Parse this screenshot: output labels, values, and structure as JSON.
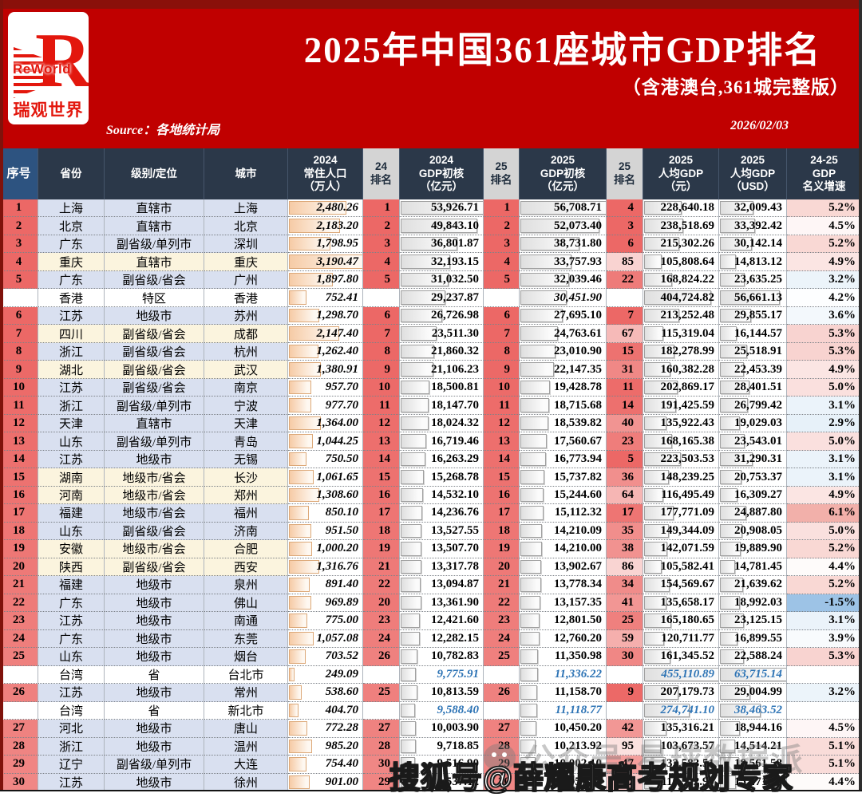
{
  "banner": {
    "logo": {
      "r": "R",
      "text_en": "ReWorld",
      "text_cn": "瑞观世界"
    },
    "source": "Source：各地统计局",
    "date": "2026/02/03"
  },
  "chart_data": {
    "type": "table",
    "title": "2025年中国361座城市GDP排名",
    "subtitle": "（含港澳台,361城完整版）",
    "columns": [
      "序号",
      "省份",
      "级别/定位",
      "城市",
      "2024\n常住人口\n（万人）",
      "24\n排名",
      "2024\nGDP初核\n（亿元）",
      "25\n排名",
      "2025\nGDP初核\n（亿元）",
      "25\n排名",
      "2025\n人均GDP\n（元）",
      "2025\n人均GDP\n（USD）",
      "24-25\nGDP\n名义增速"
    ],
    "column_order_note": "seq, province, level, city, population2024, rank24, gdp2024, rank25, gdp2025, rankPerCapita, perCapitaCNY, perCapitaUSD, growth; then row tint (b=lavender,y=cream,w=white) and special (hk/tw)",
    "bar_max": {
      "pop": 3190.47,
      "gdp24": 53926.71,
      "gdp25": 56708.71,
      "pc": 455110.89,
      "usd": 63715.14
    },
    "rows": [
      [
        "1",
        "上海",
        "直辖市",
        "上海",
        "2,480.26",
        "1",
        "53,926.71",
        "1",
        "56,708.71",
        "4",
        "228,640.18",
        "32,009.43",
        "5.2%",
        "b",
        ""
      ],
      [
        "2",
        "北京",
        "直辖市",
        "北京",
        "2,183.20",
        "2",
        "49,843.10",
        "2",
        "52,073.40",
        "3",
        "238,518.69",
        "33,392.42",
        "4.5%",
        "b",
        ""
      ],
      [
        "3",
        "广东",
        "副省级/单列市",
        "深圳",
        "1,798.95",
        "3",
        "36,801.87",
        "3",
        "38,731.80",
        "6",
        "215,302.26",
        "30,142.14",
        "5.2%",
        "b",
        ""
      ],
      [
        "4",
        "重庆",
        "直辖市",
        "重庆",
        "3,190.47",
        "4",
        "32,193.15",
        "4",
        "33,757.93",
        "85",
        "105,808.64",
        "14,813.12",
        "4.9%",
        "y",
        ""
      ],
      [
        "5",
        "广东",
        "副省级/省会",
        "广州",
        "1,897.80",
        "5",
        "31,032.50",
        "5",
        "32,039.46",
        "22",
        "168,824.22",
        "23,635.25",
        "3.2%",
        "b",
        ""
      ],
      [
        "",
        "香港",
        "特区",
        "香港",
        "752.41",
        "",
        "29,237.87",
        "",
        "30,451.90",
        "",
        "404,724.82",
        "56,661.13",
        "4.2%",
        "w",
        "hk"
      ],
      [
        "6",
        "江苏",
        "地级市",
        "苏州",
        "1,298.70",
        "6",
        "26,726.98",
        "6",
        "27,695.10",
        "7",
        "213,252.48",
        "29,855.17",
        "3.6%",
        "b",
        ""
      ],
      [
        "7",
        "四川",
        "副省级/省会",
        "成都",
        "2,147.40",
        "7",
        "23,511.30",
        "7",
        "24,763.61",
        "67",
        "115,319.04",
        "16,144.57",
        "5.3%",
        "y",
        ""
      ],
      [
        "8",
        "浙江",
        "副省级/省会",
        "杭州",
        "1,262.40",
        "8",
        "21,860.32",
        "8",
        "23,010.90",
        "15",
        "182,278.99",
        "25,518.91",
        "5.3%",
        "b",
        ""
      ],
      [
        "9",
        "湖北",
        "副省级/省会",
        "武汉",
        "1,380.91",
        "9",
        "21,106.23",
        "9",
        "22,147.35",
        "31",
        "160,382.28",
        "22,453.39",
        "4.9%",
        "y",
        ""
      ],
      [
        "10",
        "江苏",
        "副省级/省会",
        "南京",
        "957.70",
        "10",
        "18,500.81",
        "10",
        "19,428.78",
        "11",
        "202,869.17",
        "28,401.51",
        "5.0%",
        "b",
        ""
      ],
      [
        "11",
        "浙江",
        "副省级/单列市",
        "宁波",
        "977.70",
        "11",
        "18,147.70",
        "11",
        "18,715.68",
        "14",
        "191,425.59",
        "26,799.42",
        "3.1%",
        "b",
        ""
      ],
      [
        "12",
        "天津",
        "直辖市",
        "天津",
        "1,364.00",
        "12",
        "18,024.32",
        "12",
        "18,539.82",
        "40",
        "135,922.43",
        "19,029.03",
        "2.9%",
        "b",
        ""
      ],
      [
        "13",
        "山东",
        "副省级/单列市",
        "青岛",
        "1,044.25",
        "13",
        "16,719.46",
        "13",
        "17,560.67",
        "23",
        "168,165.38",
        "23,543.01",
        "5.0%",
        "b",
        ""
      ],
      [
        "14",
        "江苏",
        "地级市",
        "无锡",
        "750.50",
        "14",
        "16,263.29",
        "14",
        "16,773.94",
        "5",
        "223,503.53",
        "31,290.31",
        "3.1%",
        "b",
        ""
      ],
      [
        "15",
        "湖南",
        "地级市/省会",
        "长沙",
        "1,061.65",
        "15",
        "15,268.78",
        "15",
        "15,737.82",
        "36",
        "148,239.25",
        "20,753.37",
        "3.1%",
        "y",
        ""
      ],
      [
        "16",
        "河南",
        "地级市/省会",
        "郑州",
        "1,308.60",
        "16",
        "14,532.10",
        "16",
        "15,244.60",
        "64",
        "116,495.49",
        "16,309.27",
        "4.9%",
        "y",
        ""
      ],
      [
        "17",
        "福建",
        "地级市/省会",
        "福州",
        "850.10",
        "17",
        "14,236.76",
        "17",
        "15,112.32",
        "17",
        "177,771.09",
        "24,887.80",
        "6.1%",
        "b",
        ""
      ],
      [
        "18",
        "山东",
        "副省级/省会",
        "济南",
        "951.50",
        "18",
        "13,527.55",
        "18",
        "14,210.09",
        "35",
        "149,344.09",
        "20,908.05",
        "5.0%",
        "b",
        ""
      ],
      [
        "19",
        "安徽",
        "地级市/省会",
        "合肥",
        "1,000.20",
        "19",
        "13,507.70",
        "19",
        "14,210.00",
        "38",
        "142,071.59",
        "19,889.90",
        "5.2%",
        "y",
        ""
      ],
      [
        "20",
        "陕西",
        "副省级/省会",
        "西安",
        "1,316.76",
        "21",
        "13,317.78",
        "20",
        "13,902.67",
        "86",
        "105,582.41",
        "14,781.45",
        "4.4%",
        "y",
        ""
      ],
      [
        "21",
        "福建",
        "地级市",
        "泉州",
        "891.40",
        "22",
        "13,094.87",
        "21",
        "13,778.34",
        "34",
        "154,569.67",
        "21,639.62",
        "5.2%",
        "b",
        ""
      ],
      [
        "22",
        "广东",
        "地级市",
        "佛山",
        "969.89",
        "20",
        "13,361.90",
        "22",
        "13,157.35",
        "41",
        "135,658.17",
        "18,992.03",
        "-1.5%",
        "b",
        ""
      ],
      [
        "23",
        "江苏",
        "地级市",
        "南通",
        "775.00",
        "23",
        "12,421.60",
        "23",
        "12,801.50",
        "25",
        "165,180.65",
        "23,125.15",
        "3.1%",
        "b",
        ""
      ],
      [
        "24",
        "广东",
        "地级市",
        "东莞",
        "1,057.08",
        "24",
        "12,282.15",
        "24",
        "12,760.20",
        "59",
        "120,711.77",
        "16,899.55",
        "3.9%",
        "b",
        ""
      ],
      [
        "25",
        "山东",
        "地级市",
        "烟台",
        "703.52",
        "26",
        "10,782.83",
        "25",
        "11,350.98",
        "30",
        "161,345.52",
        "22,588.24",
        "5.3%",
        "b",
        ""
      ],
      [
        "",
        "台湾",
        "省",
        "台北市",
        "249.09",
        "",
        "9,775.91",
        "",
        "11,336.22",
        "",
        "455,110.89",
        "63,715.14",
        "",
        "w",
        "tw"
      ],
      [
        "26",
        "江苏",
        "地级市",
        "常州",
        "538.60",
        "25",
        "10,813.59",
        "26",
        "11,158.70",
        "9",
        "207,179.73",
        "29,004.99",
        "3.2%",
        "b",
        ""
      ],
      [
        "",
        "台湾",
        "省",
        "新北市",
        "404.70",
        "",
        "9,588.40",
        "",
        "11,118.77",
        "",
        "274,741.10",
        "38,463.52",
        "",
        "w",
        "tw"
      ],
      [
        "27",
        "河北",
        "地级市",
        "唐山",
        "772.28",
        "27",
        "10,003.90",
        "27",
        "10,450.20",
        "42",
        "135,316.21",
        "18,944.16",
        "4.5%",
        "b",
        ""
      ],
      [
        "28",
        "浙江",
        "地级市",
        "温州",
        "985.20",
        "28",
        "9,718.85",
        "28",
        "10,213.92",
        "95",
        "103,673.57",
        "14,514.21",
        "5.1%",
        "b",
        ""
      ],
      [
        "29",
        "辽宁",
        "副省级/单列市",
        "大连",
        "754.40",
        "30",
        "9,516.90",
        "29",
        "10,002.10",
        "47",
        "132,583.51",
        "18,561.58",
        "5.1%",
        "b",
        ""
      ],
      [
        "30",
        "江苏",
        "地级市",
        "徐州",
        "901.00",
        "29",
        "9,537.12",
        "30",
        "9,957.22",
        "77",
        "110,512.99",
        "15,471.73",
        "4.4%",
        "b",
        ""
      ]
    ]
  },
  "watermarks": {
    "sohu": "搜狐号@薛耀康高考规划专家",
    "gongzhonghao": "公众号·星球数据派"
  },
  "colors": {
    "banner_red": "#C00000",
    "banner_dark": "#8A100A",
    "header_navy": "#2B3849",
    "seq_header_blue": "#2D5380",
    "rank_header_gray": "#D4D4D4",
    "rank_salmon": "#EC6866",
    "rank_salmon_light": "#FDF3F1",
    "taiwan_blue": "#2E74B5",
    "growth_positive": "#F2B0AA",
    "growth_negative": "#9DC3E6",
    "row_lavender": "#D9E0F0",
    "row_cream": "#FBF4DE",
    "pop_bar_peach": "#F6CBA6"
  }
}
